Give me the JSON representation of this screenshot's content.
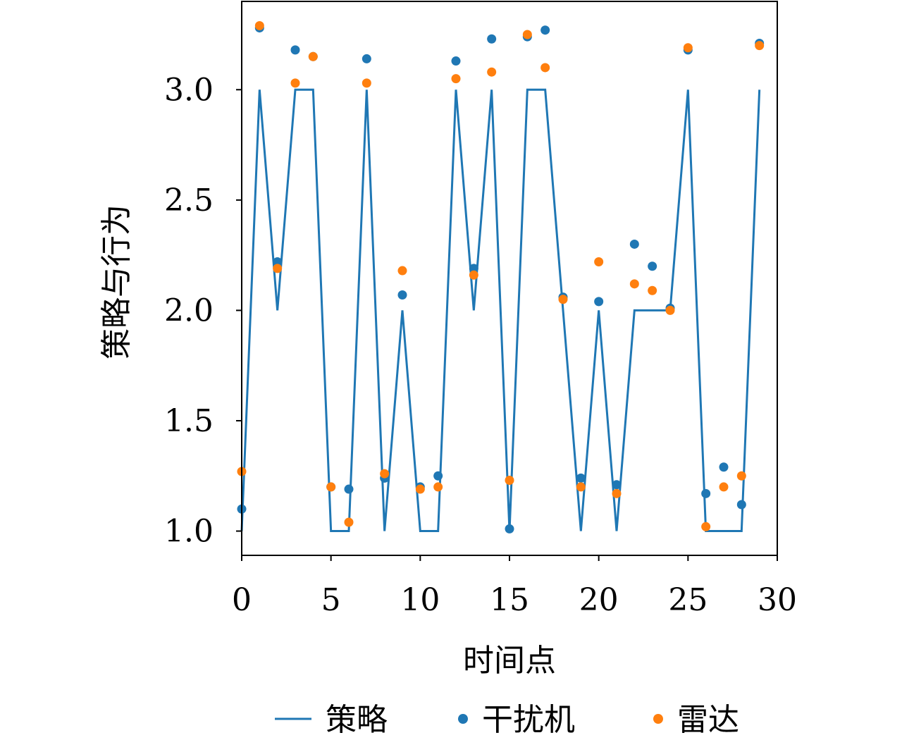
{
  "chart_data": {
    "type": "line",
    "xlabel": "时间点",
    "ylabel": "策略与行为",
    "xlim": [
      0,
      30
    ],
    "ylim": [
      0.89,
      3.4
    ],
    "xticks": [
      0,
      5,
      10,
      15,
      20,
      25,
      30
    ],
    "xtick_labels": [
      "0",
      "5",
      "10",
      "15",
      "20",
      "25",
      "30"
    ],
    "yticks": [
      1.0,
      1.5,
      2.0,
      2.5,
      3.0
    ],
    "ytick_labels": [
      "1.0",
      "1.5",
      "2.0",
      "2.5",
      "3.0"
    ],
    "grid": false,
    "legend": "bottom",
    "x": [
      0,
      1,
      2,
      3,
      4,
      5,
      6,
      7,
      8,
      9,
      10,
      11,
      12,
      13,
      14,
      15,
      16,
      17,
      18,
      19,
      20,
      21,
      22,
      23,
      24,
      25,
      26,
      27,
      28,
      29
    ],
    "series": [
      {
        "name": "策略",
        "kind": "line",
        "color": "#1f77b4",
        "values": [
          1.0,
          3.0,
          2.0,
          3.0,
          3.0,
          1.0,
          1.0,
          3.0,
          1.0,
          2.0,
          1.0,
          1.0,
          3.0,
          2.0,
          3.0,
          1.0,
          3.0,
          3.0,
          2.0,
          1.0,
          2.0,
          1.0,
          2.0,
          2.0,
          2.0,
          3.0,
          1.0,
          1.0,
          1.0,
          3.0
        ]
      },
      {
        "name": "干扰机",
        "kind": "scatter",
        "color": "#1f77b4",
        "values": [
          1.1,
          3.28,
          2.22,
          3.18,
          3.15,
          1.2,
          1.19,
          3.14,
          1.24,
          2.07,
          1.2,
          1.25,
          3.13,
          2.19,
          3.23,
          1.01,
          3.24,
          3.27,
          2.06,
          1.24,
          2.04,
          1.21,
          2.3,
          2.2,
          2.01,
          3.18,
          1.17,
          1.29,
          1.12,
          3.21
        ]
      },
      {
        "name": "雷达",
        "kind": "scatter",
        "color": "#ff7f0e",
        "values": [
          1.27,
          3.29,
          2.19,
          3.03,
          3.15,
          1.2,
          1.04,
          3.03,
          1.26,
          2.18,
          1.19,
          1.2,
          3.05,
          2.16,
          3.08,
          1.23,
          3.25,
          3.1,
          2.05,
          1.2,
          2.22,
          1.17,
          2.12,
          2.09,
          2.0,
          3.19,
          1.02,
          1.2,
          1.25,
          3.2
        ]
      }
    ]
  }
}
